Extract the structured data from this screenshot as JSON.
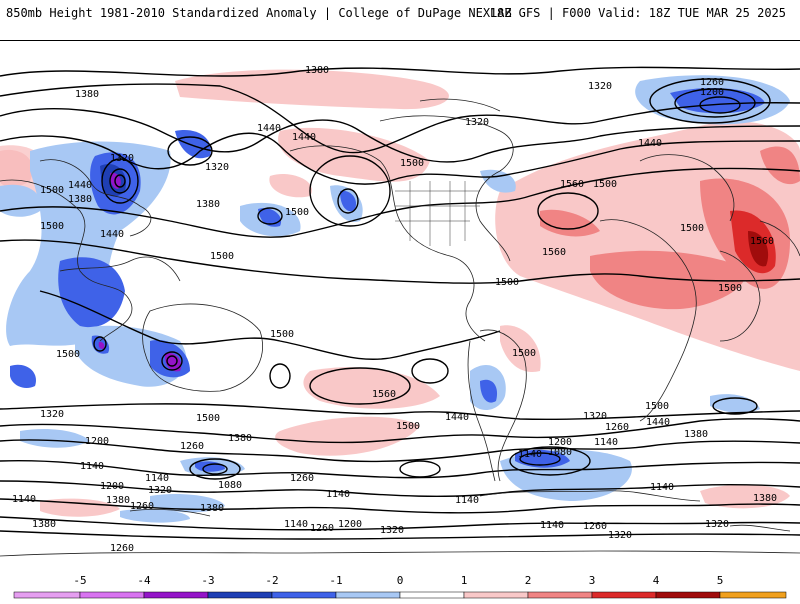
{
  "header": {
    "title": "850mb Height 1981-2010 Standardized Anomaly | College of DuPage NEXLAB",
    "run": "18Z GFS | F000 Valid: 18Z TUE MAR 25 2025"
  },
  "legend": {
    "ticks": [
      "-5",
      "-4",
      "-3",
      "-2",
      "-1",
      "0",
      "1",
      "2",
      "3",
      "4",
      "5"
    ],
    "colors": [
      "#d873f0",
      "#9414c8",
      "#1f3fb4",
      "#3f62e8",
      "#a8c8f4",
      "#ffffff",
      "#f9c8c8",
      "#f08484",
      "#dc2a2a",
      "#a00c0c",
      "#f0a01e"
    ]
  },
  "contour_labels": [
    {
      "id": "l1",
      "text": "1380"
    },
    {
      "id": "l2",
      "text": "1380"
    },
    {
      "id": "l3",
      "text": "1320"
    },
    {
      "id": "l4",
      "text": "1260"
    },
    {
      "id": "l5",
      "text": "1200"
    },
    {
      "id": "l6",
      "text": "1320"
    },
    {
      "id": "l7",
      "text": "1440"
    },
    {
      "id": "l8",
      "text": "1440"
    },
    {
      "id": "l9",
      "text": "1320"
    },
    {
      "id": "l10",
      "text": "1320"
    },
    {
      "id": "l11",
      "text": "1500"
    },
    {
      "id": "l12",
      "text": "1440"
    },
    {
      "id": "l13",
      "text": "1380"
    },
    {
      "id": "l14",
      "text": "1500"
    },
    {
      "id": "l15",
      "text": "1380"
    },
    {
      "id": "l16",
      "text": "1500"
    },
    {
      "id": "l17",
      "text": "1440"
    },
    {
      "id": "l18",
      "text": "1500"
    },
    {
      "id": "l19",
      "text": "1560"
    },
    {
      "id": "l20",
      "text": "1500"
    },
    {
      "id": "l21",
      "text": "1440"
    },
    {
      "id": "l22",
      "text": "1500"
    },
    {
      "id": "l23",
      "text": "1560"
    },
    {
      "id": "l24",
      "text": "1560"
    },
    {
      "id": "l25",
      "text": "1500"
    },
    {
      "id": "l26",
      "text": "1500"
    },
    {
      "id": "l27",
      "text": "1500"
    },
    {
      "id": "l28",
      "text": "1500"
    },
    {
      "id": "l29",
      "text": "1500"
    },
    {
      "id": "l30",
      "text": "1500"
    },
    {
      "id": "l31",
      "text": "1560"
    },
    {
      "id": "l32",
      "text": "1500"
    },
    {
      "id": "l33",
      "text": "1440"
    },
    {
      "id": "l34",
      "text": "1500"
    },
    {
      "id": "l35",
      "text": "1500"
    },
    {
      "id": "l36",
      "text": "1440"
    },
    {
      "id": "l37",
      "text": "1380"
    },
    {
      "id": "l38",
      "text": "1320"
    },
    {
      "id": "l39",
      "text": "1260"
    },
    {
      "id": "l40",
      "text": "1140"
    },
    {
      "id": "l41",
      "text": "1380"
    },
    {
      "id": "l42",
      "text": "1320"
    },
    {
      "id": "l43",
      "text": "1200"
    },
    {
      "id": "l44",
      "text": "1260"
    },
    {
      "id": "l45",
      "text": "1140"
    },
    {
      "id": "l46",
      "text": "1140"
    },
    {
      "id": "l47",
      "text": "1080"
    },
    {
      "id": "l48",
      "text": "1200"
    },
    {
      "id": "l49",
      "text": "1320"
    },
    {
      "id": "l50",
      "text": "1380"
    },
    {
      "id": "l51",
      "text": "1140"
    },
    {
      "id": "l52",
      "text": "1260"
    },
    {
      "id": "l53",
      "text": "1380"
    },
    {
      "id": "l54",
      "text": "1260"
    },
    {
      "id": "l55",
      "text": "1200"
    },
    {
      "id": "l56",
      "text": "1140"
    },
    {
      "id": "l57",
      "text": "1140"
    },
    {
      "id": "l58",
      "text": "1080"
    },
    {
      "id": "l59",
      "text": "1140"
    },
    {
      "id": "l60",
      "text": "1200"
    },
    {
      "id": "l61",
      "text": "1260"
    },
    {
      "id": "l62",
      "text": "1320"
    },
    {
      "id": "l63",
      "text": "1260"
    },
    {
      "id": "l64",
      "text": "1140"
    },
    {
      "id": "l65",
      "text": "1260"
    },
    {
      "id": "l66",
      "text": "1200"
    },
    {
      "id": "l67",
      "text": "1320"
    },
    {
      "id": "l68",
      "text": "1140"
    },
    {
      "id": "l69",
      "text": "1380"
    },
    {
      "id": "l70",
      "text": "1320"
    },
    {
      "id": "l71",
      "text": "1380"
    },
    {
      "id": "l72",
      "text": "1140"
    }
  ]
}
